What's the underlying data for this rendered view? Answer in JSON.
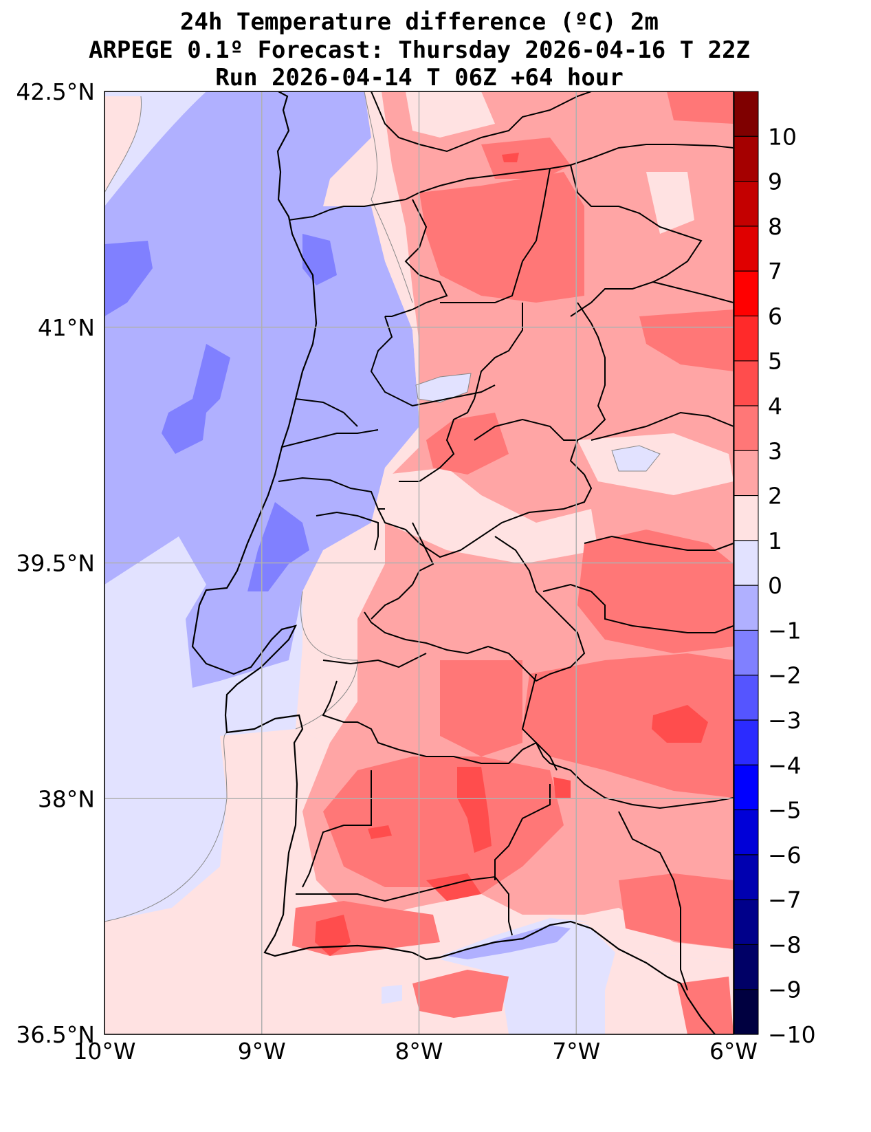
{
  "title": {
    "line1": "24h Temperature difference (ºC) 2m",
    "line2": "ARPEGE 0.1º Forecast: Thursday 2026-04-16 T 22Z",
    "line3": "Run 2026-04-14 T 06Z +64 hour"
  },
  "map": {
    "lon_range": [
      -10,
      -6
    ],
    "lat_range": [
      36.5,
      42.5
    ],
    "lat_ticks": [
      {
        "value": 42.5,
        "label": "42.5°N"
      },
      {
        "value": 41,
        "label": "41°N"
      },
      {
        "value": 39.5,
        "label": "39.5°N"
      },
      {
        "value": 38,
        "label": "38°N"
      },
      {
        "value": 36.5,
        "label": "36.5°N"
      }
    ],
    "lon_ticks": [
      {
        "value": -10,
        "label": "10°W"
      },
      {
        "value": -9,
        "label": "9°W"
      },
      {
        "value": -8,
        "label": "8°W"
      },
      {
        "value": -7,
        "label": "7°W"
      },
      {
        "value": -6,
        "label": "6°W"
      }
    ]
  },
  "colorbar": {
    "levels": [
      "10",
      "9",
      "8",
      "7",
      "6",
      "5",
      "4",
      "3",
      "2",
      "1",
      "0",
      "−1",
      "−2",
      "−3",
      "−4",
      "−5",
      "−6",
      "−7",
      "−8",
      "−9",
      "−10"
    ],
    "colors": [
      "#7f0000",
      "#a50000",
      "#c40000",
      "#e00000",
      "#ff0000",
      "#ff2a2a",
      "#ff4d4d",
      "#ff7777",
      "#ffa5a5",
      "#ffe2e2",
      "#e2e2ff",
      "#b0b0ff",
      "#8080ff",
      "#5555ff",
      "#2b2bff",
      "#0000ff",
      "#0000d8",
      "#0000b0",
      "#00008a",
      "#000066",
      "#000040"
    ]
  },
  "colors": {
    "sea_cool": "#e2e2ff",
    "sea_cooler": "#b0b0ff",
    "sea_coldest": "#8080ff",
    "land_neutral": "#ffe2e2",
    "land_warm1": "#ffa5a5",
    "land_warm2": "#ff7777",
    "land_warm3": "#ff4d4d"
  }
}
